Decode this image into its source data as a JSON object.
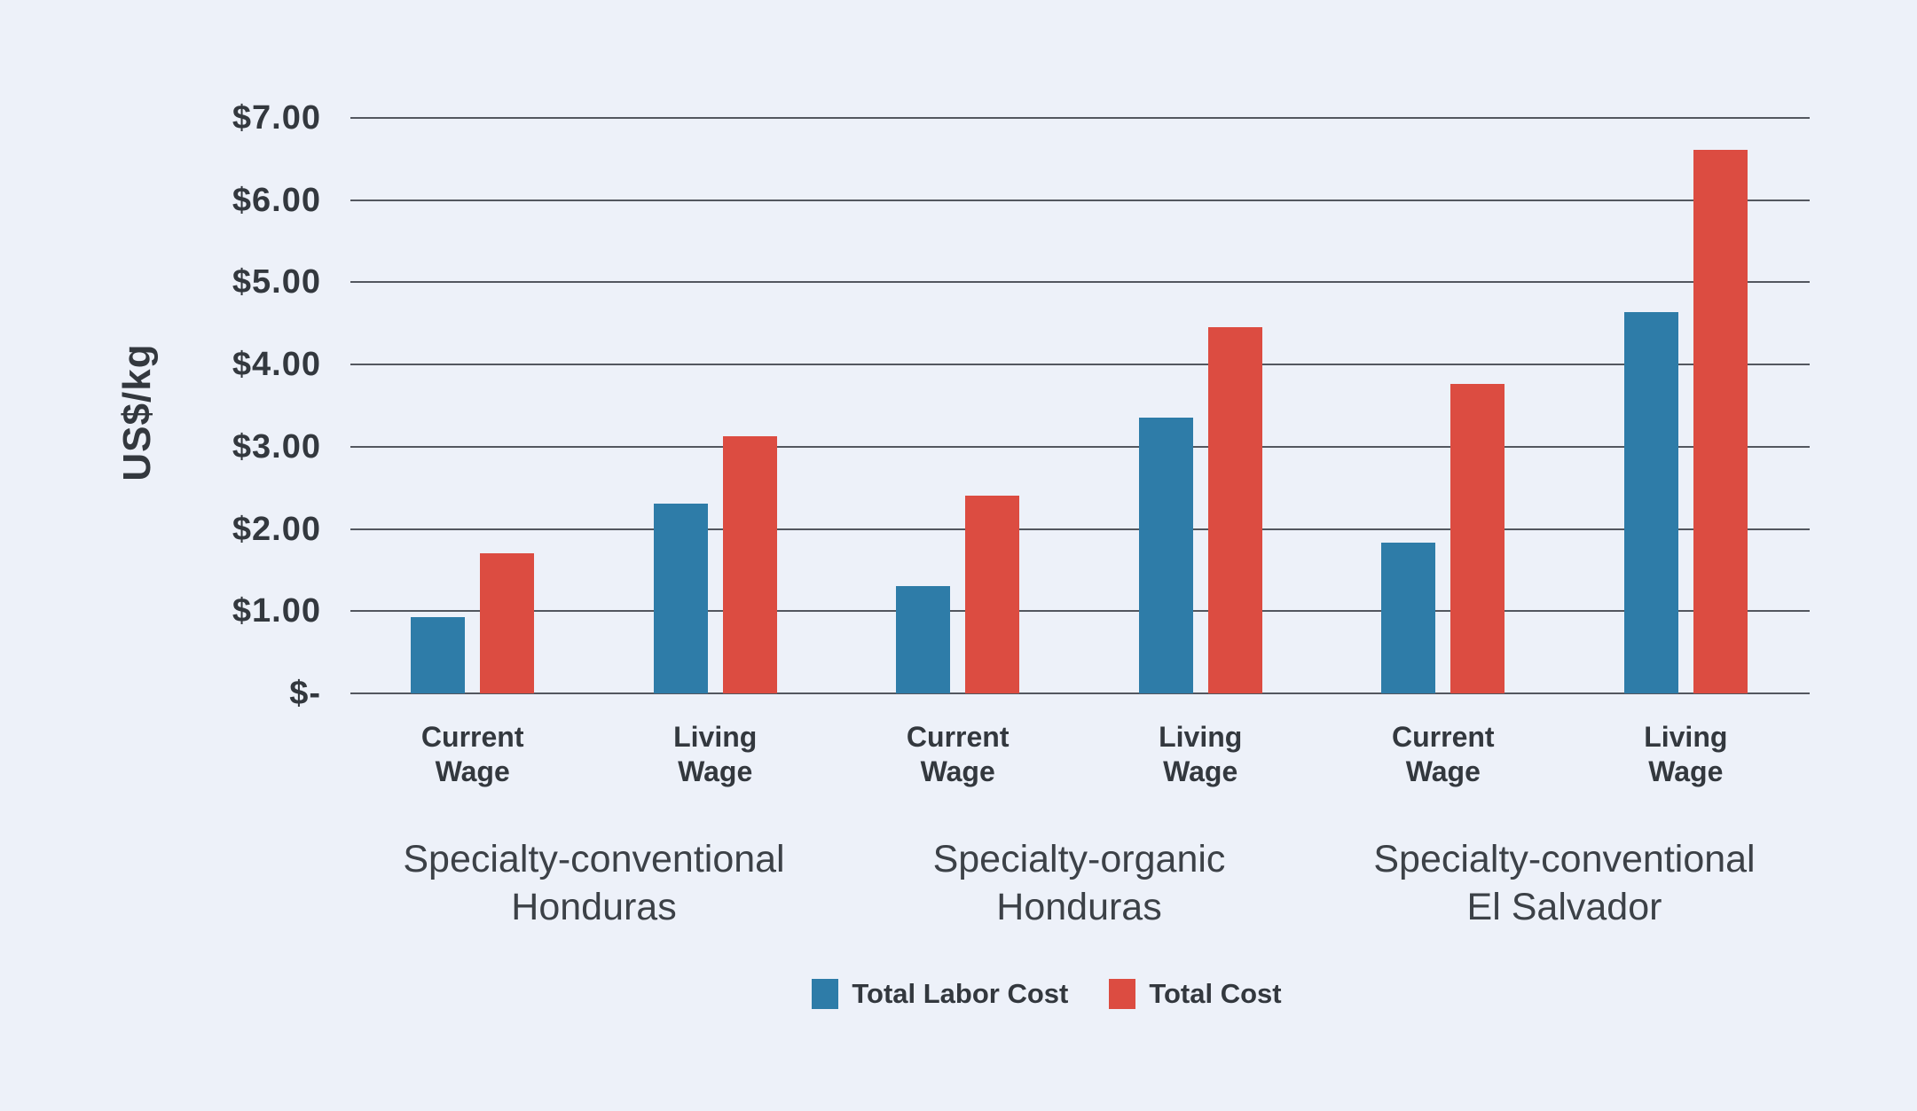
{
  "colors": {
    "background": "#edf1f9",
    "bar_blue": "#2e7ca8",
    "bar_red": "#dc4c41",
    "gridline": "#53575f",
    "text_dark": "#33383e",
    "text_group": "#3c4147"
  },
  "chart_data": {
    "type": "bar",
    "title": "",
    "ylabel": "US$/kg",
    "xlabel": "",
    "ylim": [
      0,
      7
    ],
    "ytick_step": 1,
    "ytick_labels": [
      "$-",
      "$1.00",
      "$2.00",
      "$3.00",
      "$4.00",
      "$5.00",
      "$6.00",
      "$7.00"
    ],
    "grid": true,
    "legend_position": "bottom-center",
    "pairs": [
      {
        "lines": [
          "Current",
          "Wage"
        ],
        "group": 0
      },
      {
        "lines": [
          "Living",
          "Wage"
        ],
        "group": 0
      },
      {
        "lines": [
          "Current",
          "Wage"
        ],
        "group": 1
      },
      {
        "lines": [
          "Living",
          "Wage"
        ],
        "group": 1
      },
      {
        "lines": [
          "Current",
          "Wage"
        ],
        "group": 2
      },
      {
        "lines": [
          "Living",
          "Wage"
        ],
        "group": 2
      }
    ],
    "groups": [
      {
        "lines": [
          "Specialty-conventional",
          "Honduras"
        ]
      },
      {
        "lines": [
          "Specialty-organic",
          "Honduras"
        ]
      },
      {
        "lines": [
          "Specialty-conventional",
          "El Salvador"
        ]
      }
    ],
    "series": [
      {
        "name": "Total Labor Cost",
        "color_key": "bar_blue",
        "values": [
          0.93,
          2.31,
          1.3,
          3.35,
          1.83,
          4.64
        ]
      },
      {
        "name": "Total Cost",
        "color_key": "bar_red",
        "values": [
          1.7,
          3.13,
          2.4,
          4.45,
          3.76,
          6.61
        ]
      }
    ]
  }
}
